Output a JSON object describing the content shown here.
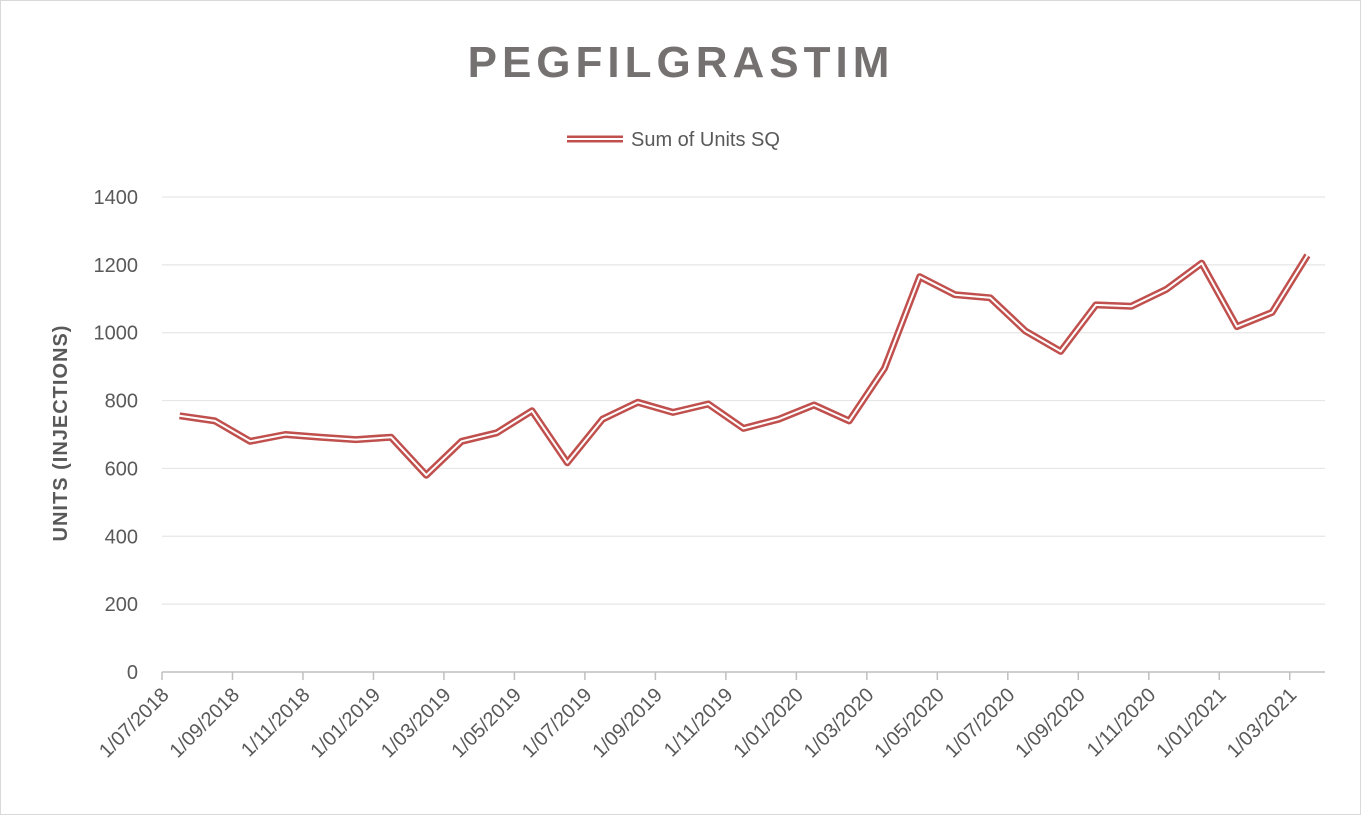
{
  "chart_data": {
    "type": "line",
    "title": "PEGFILGRASTIM",
    "ylabel": "UNITS (INJECTIONS)",
    "xlabel": "",
    "ylim": [
      0,
      1400
    ],
    "yticks": [
      0,
      200,
      400,
      600,
      800,
      1000,
      1200,
      1400
    ],
    "grid": true,
    "legend_position": "top",
    "colors": {
      "series": "#c0504d",
      "grid": "#e6e6e6",
      "axis": "#bfbfbf"
    },
    "x_tick_labels": [
      "1/07/2018",
      "1/09/2018",
      "1/11/2018",
      "1/01/2019",
      "1/03/2019",
      "1/05/2019",
      "1/07/2019",
      "1/09/2019",
      "1/11/2019",
      "1/01/2020",
      "1/03/2020",
      "1/05/2020",
      "1/07/2020",
      "1/09/2020",
      "1/11/2020",
      "1/01/2021",
      "1/03/2021"
    ],
    "x": [
      "1/07/2018",
      "1/08/2018",
      "1/09/2018",
      "1/10/2018",
      "1/11/2018",
      "1/12/2018",
      "1/01/2019",
      "1/02/2019",
      "1/03/2019",
      "1/04/2019",
      "1/05/2019",
      "1/06/2019",
      "1/07/2019",
      "1/08/2019",
      "1/09/2019",
      "1/10/2019",
      "1/11/2019",
      "1/12/2019",
      "1/01/2020",
      "1/02/2020",
      "1/03/2020",
      "1/04/2020",
      "1/05/2020",
      "1/06/2020",
      "1/07/2020",
      "1/08/2020",
      "1/09/2020",
      "1/10/2020",
      "1/11/2020",
      "1/12/2020",
      "1/01/2021",
      "1/02/2021",
      "1/03/2021"
    ],
    "series": [
      {
        "name": "Sum of Units SQ",
        "values": [
          755,
          740,
          680,
          700,
          692,
          685,
          692,
          580,
          680,
          705,
          770,
          617,
          745,
          795,
          765,
          790,
          718,
          745,
          787,
          740,
          895,
          1165,
          1112,
          1103,
          1005,
          945,
          1082,
          1078,
          1128,
          1205,
          1018,
          1060,
          1228
        ]
      }
    ]
  }
}
